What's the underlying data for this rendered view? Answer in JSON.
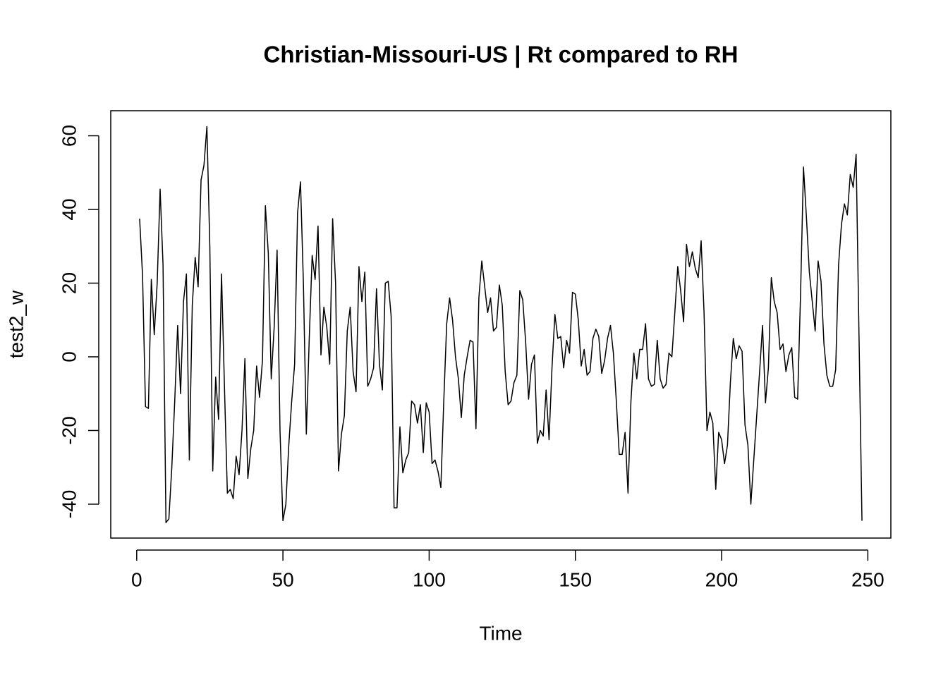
{
  "chart_data": {
    "type": "line",
    "title": "Christian-Missouri-US | Rt compared to RH",
    "x_label": "Time",
    "y_label": "test2_w",
    "x": [
      1,
      2,
      3,
      4,
      5,
      6,
      7,
      8,
      9,
      10,
      11,
      12,
      13,
      14,
      15,
      16,
      17,
      18,
      19,
      20,
      21,
      22,
      23,
      24,
      25,
      26,
      27,
      28,
      29,
      30,
      31,
      32,
      33,
      34,
      35,
      36,
      37,
      38,
      39,
      40,
      41,
      42,
      43,
      44,
      45,
      46,
      47,
      48,
      49,
      50,
      51,
      52,
      53,
      54,
      55,
      56,
      57,
      58,
      59,
      60,
      61,
      62,
      63,
      64,
      65,
      66,
      67,
      68,
      69,
      70,
      71,
      72,
      73,
      74,
      75,
      76,
      77,
      78,
      79,
      80,
      81,
      82,
      83,
      84,
      85,
      86,
      87,
      88,
      89,
      90,
      91,
      92,
      93,
      94,
      95,
      96,
      97,
      98,
      99,
      100,
      101,
      102,
      103,
      104,
      105,
      106,
      107,
      108,
      109,
      110,
      111,
      112,
      113,
      114,
      115,
      116,
      117,
      118,
      119,
      120,
      121,
      122,
      123,
      124,
      125,
      126,
      127,
      128,
      129,
      130,
      131,
      132,
      133,
      134,
      135,
      136,
      137,
      138,
      139,
      140,
      141,
      142,
      143,
      144,
      145,
      146,
      147,
      148,
      149,
      150,
      151,
      152,
      153,
      154,
      155,
      156,
      157,
      158,
      159,
      160,
      161,
      162,
      163,
      164,
      165,
      166,
      167,
      168,
      169,
      170,
      171,
      172,
      173,
      174,
      175,
      176,
      177,
      178,
      179,
      180,
      181,
      182,
      183,
      184,
      185,
      186,
      187,
      188,
      189,
      190,
      191,
      192,
      193,
      194,
      195,
      196,
      197,
      198,
      199,
      200,
      201,
      202,
      203,
      204,
      205,
      206,
      207,
      208,
      209,
      210,
      211,
      212,
      213,
      214,
      215,
      216,
      217,
      218,
      219,
      220,
      221,
      222,
      223,
      224,
      225,
      226,
      227,
      228,
      229,
      230,
      231,
      232,
      233,
      234,
      235,
      236,
      237,
      238,
      239,
      240,
      241,
      242,
      243,
      244,
      245,
      246,
      247,
      248
    ],
    "series": [
      {
        "name": "test2_w",
        "color": "#000000",
        "values": [
          37.5,
          22,
          -13.5,
          -14,
          21,
          6,
          20,
          45.5,
          25,
          -45,
          -44,
          -30,
          -12,
          8.5,
          -10,
          15,
          22.5,
          -28,
          14,
          27,
          19,
          48,
          52,
          62.5,
          30,
          -31,
          -5.5,
          -17,
          22.5,
          -8,
          -37,
          -36,
          -38.5,
          -27,
          -32,
          -20,
          -0.5,
          -33,
          -25,
          -20,
          -2.5,
          -11,
          -1,
          41,
          28,
          -6,
          8,
          29,
          -20,
          -44.5,
          -40,
          -24,
          -12,
          -2,
          39,
          47.5,
          20,
          -21,
          5,
          27.5,
          21,
          35.5,
          0.5,
          13.5,
          8,
          -2,
          37.5,
          20,
          -31,
          -21,
          -16,
          7,
          13.5,
          -4,
          -9.5,
          24.5,
          15,
          23,
          -8,
          -6,
          -3,
          18.5,
          -2,
          -9,
          20,
          20.5,
          11,
          -41,
          -41,
          -19,
          -31.5,
          -28,
          -26,
          -12,
          -13,
          -18,
          -13,
          -26,
          -12.5,
          -15,
          -29,
          -28,
          -31,
          -35.5,
          -12,
          9,
          16,
          10,
          0,
          -6,
          -16.5,
          -5,
          0,
          4.5,
          4,
          -19.5,
          16,
          26,
          19,
          12,
          16,
          7,
          8,
          19.5,
          14,
          -4,
          -13,
          -12,
          -7,
          -5,
          18,
          15.5,
          4,
          -11.5,
          -2,
          0.5,
          -23.5,
          -20,
          -21.5,
          -9,
          -22.5,
          -3,
          11.5,
          5,
          5.5,
          -3,
          4.5,
          1,
          17.5,
          17,
          10,
          -2.5,
          2,
          -5,
          -4,
          5,
          7.5,
          5.5,
          -4.5,
          -1,
          5,
          8.5,
          1,
          -12,
          -26.5,
          -26.5,
          -20.5,
          -37,
          -12,
          1,
          -6,
          2,
          2,
          9,
          -6,
          -8,
          -7.5,
          4.5,
          -6,
          -8.5,
          -7.5,
          1,
          0,
          12,
          24.5,
          18,
          9.5,
          30.5,
          24.5,
          28.5,
          24,
          21.5,
          31.5,
          12,
          -20,
          -15,
          -18,
          -36,
          -20.5,
          -22.5,
          -29,
          -24,
          -7,
          5,
          -0.5,
          3,
          1.5,
          -18.5,
          -24,
          -40,
          -28,
          -16,
          -4,
          8.5,
          -12.5,
          -3,
          21.5,
          15,
          12,
          2,
          3.5,
          -4,
          0.5,
          2.5,
          -11,
          -11.5,
          17,
          51.5,
          38,
          23,
          15,
          7,
          26,
          20.5,
          3.5,
          -5,
          -8,
          -8,
          -3.5,
          25,
          36,
          41.5,
          38.5,
          49.5,
          46,
          55,
          5,
          -44.5
        ]
      }
    ],
    "xlim": [
      -8.88,
      257.88
    ],
    "ylim": [
      -49.2,
      66.8
    ],
    "xticks": [
      0,
      50,
      100,
      150,
      200,
      250
    ],
    "yticks": [
      -40,
      -20,
      0,
      20,
      40,
      60
    ],
    "grid": false
  }
}
